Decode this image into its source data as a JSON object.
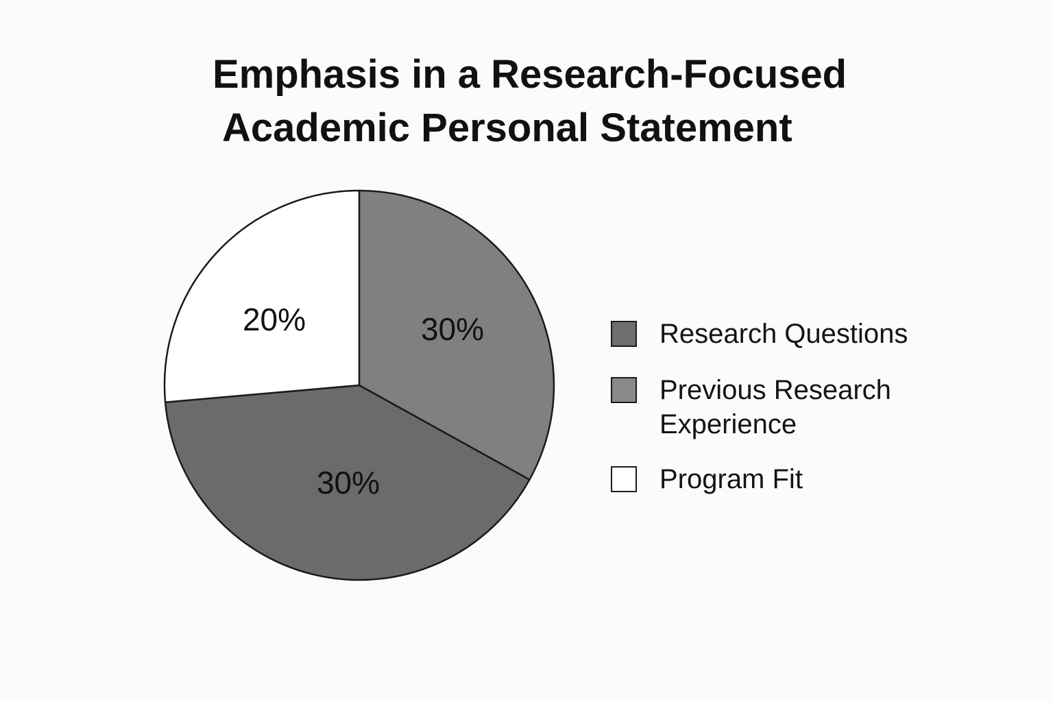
{
  "chart_data": {
    "type": "pie",
    "title": "Emphasis in a Research-Focused Academic Personal Statement",
    "title_lines": [
      "Emphasis in a Research-Focused",
      "Academic Personal Statement"
    ],
    "legend_position": "right",
    "slices": [
      {
        "label": "Research Questions",
        "value": 30,
        "value_label": "30%",
        "color": "#808080"
      },
      {
        "label": "Previous Research Experience",
        "value": 30,
        "value_label": "30%",
        "color": "#6b6b6b"
      },
      {
        "label": "Program Fit",
        "value": 20,
        "value_label": "20%",
        "color": "#ffffff"
      }
    ],
    "legend": [
      {
        "label": "Research Questions",
        "color": "#6e6e6e"
      },
      {
        "label": "Previous Research Experience",
        "color": "#8a8a8a"
      },
      {
        "label": "Program Fit",
        "color": "#ffffff"
      }
    ],
    "colors": {
      "background": "#fbfbf9",
      "outline": "#1a1a1a",
      "text": "#111111"
    }
  }
}
